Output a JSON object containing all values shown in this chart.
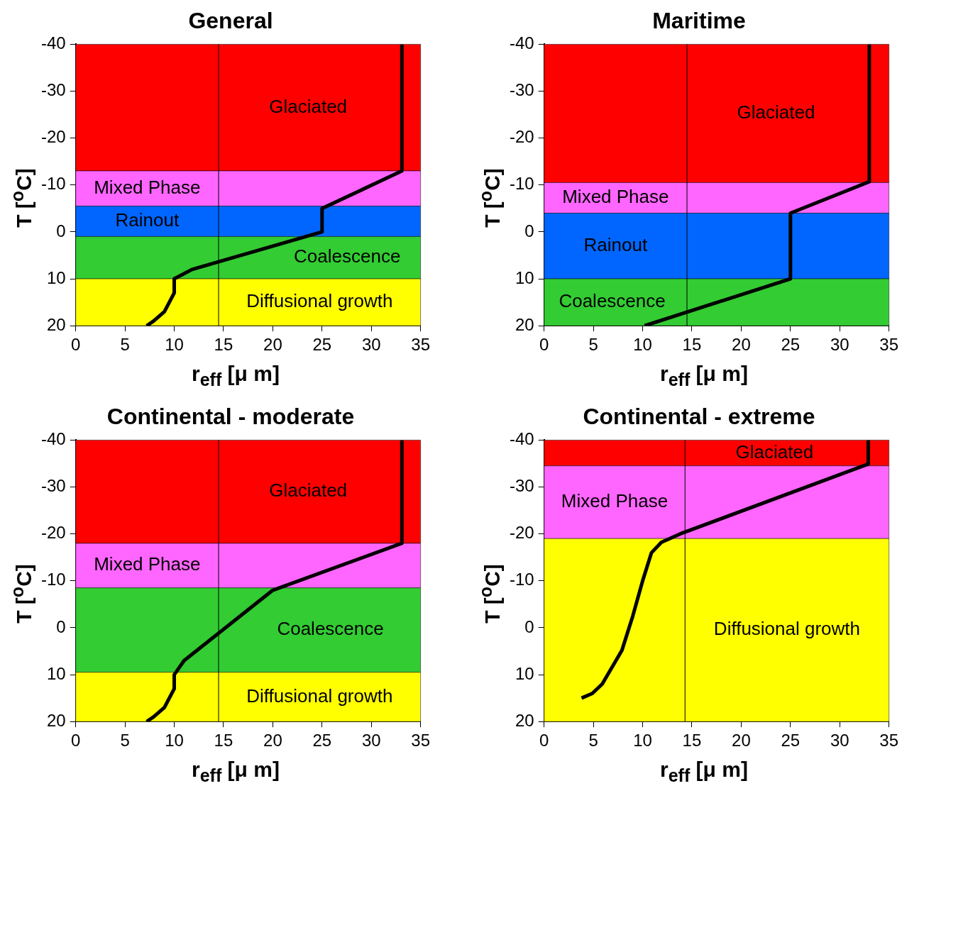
{
  "chart_data": [
    {
      "type": "line",
      "title": "General",
      "xlabel": "r$_{eff}$ [μ m]",
      "ylabel": "T [$^{o}$C]",
      "xlim": [
        0,
        35
      ],
      "xticks": [
        0,
        5,
        10,
        15,
        20,
        25,
        30,
        35
      ],
      "ylim": [
        20,
        -40
      ],
      "yticks": [
        -40,
        -30,
        -20,
        -10,
        0,
        10,
        20
      ],
      "grid": false,
      "legend": false,
      "marker": "none",
      "bands": [
        {
          "axis": "y",
          "from": -40,
          "to": -13,
          "label": "Glaciated",
          "color": "#ff0000"
        },
        {
          "axis": "y",
          "from": -13,
          "to": -5.5,
          "label": "Mixed Phase",
          "color": "#ff66ff"
        },
        {
          "axis": "y",
          "from": -5.5,
          "to": 1,
          "label": "Rainout",
          "color": "#0066ff"
        },
        {
          "axis": "y",
          "from": 1,
          "to": 10,
          "label": "Coalescence",
          "color": "#33cc33"
        },
        {
          "axis": "y",
          "from": 10,
          "to": 20,
          "label": "Diffusional growth",
          "color": "#ffff00"
        }
      ],
      "ref_lines": [
        {
          "axis": "x",
          "value": 14.5,
          "color": "#000000"
        }
      ],
      "series": [
        {
          "type": "line",
          "color": "#000000",
          "x": [
            7.2,
            7.9,
            9,
            10,
            10,
            11.8,
            25,
            25,
            33.1,
            33.1
          ],
          "values": [
            20,
            19,
            17,
            13,
            10,
            8,
            0,
            -5,
            -13,
            -40
          ]
        }
      ]
    },
    {
      "type": "line",
      "title": "Maritime",
      "xlabel": "r$_{eff}$ [μ m]",
      "ylabel": "T [$^{o}$C]",
      "xlim": [
        0,
        35
      ],
      "xticks": [
        0,
        5,
        10,
        15,
        20,
        25,
        30,
        35
      ],
      "ylim": [
        20,
        -40
      ],
      "yticks": [
        -40,
        -30,
        -20,
        -10,
        0,
        10,
        20
      ],
      "grid": false,
      "legend": false,
      "marker": "none",
      "bands": [
        {
          "axis": "y",
          "from": -40,
          "to": -10.5,
          "label": "Glaciated",
          "color": "#ff0000"
        },
        {
          "axis": "y",
          "from": -10.5,
          "to": -4,
          "label": "Mixed Phase",
          "color": "#ff66ff"
        },
        {
          "axis": "y",
          "from": -4,
          "to": 10,
          "label": "Rainout",
          "color": "#0066ff"
        },
        {
          "axis": "y",
          "from": 10,
          "to": 20,
          "label": "Coalescence",
          "color": "#33cc33"
        }
      ],
      "ref_lines": [
        {
          "axis": "x",
          "value": 14.5,
          "color": "#000000"
        }
      ],
      "series": [
        {
          "type": "line",
          "color": "#000000",
          "x": [
            10.2,
            25,
            25,
            33,
            33
          ],
          "values": [
            20,
            10,
            -4,
            -10.7,
            -40
          ]
        }
      ]
    },
    {
      "type": "line",
      "title": "Continental - moderate",
      "xlabel": "r$_{eff}$ [μ m]",
      "ylabel": "T [$^{o}$C]",
      "xlim": [
        0,
        35
      ],
      "xticks": [
        0,
        5,
        10,
        15,
        20,
        25,
        30,
        35
      ],
      "ylim": [
        20,
        -40
      ],
      "yticks": [
        -40,
        -30,
        -20,
        -10,
        0,
        10,
        20
      ],
      "grid": false,
      "legend": false,
      "marker": "none",
      "bands": [
        {
          "axis": "y",
          "from": -40,
          "to": -18,
          "label": "Glaciated",
          "color": "#ff0000"
        },
        {
          "axis": "y",
          "from": -18,
          "to": -8.5,
          "label": "Mixed Phase",
          "color": "#ff66ff"
        },
        {
          "axis": "y",
          "from": -8.5,
          "to": 9.5,
          "label": "Coalescence",
          "color": "#33cc33"
        },
        {
          "axis": "y",
          "from": 9.5,
          "to": 20,
          "label": "Diffusional growth",
          "color": "#ffff00"
        }
      ],
      "ref_lines": [
        {
          "axis": "x",
          "value": 14.5,
          "color": "#000000"
        }
      ],
      "series": [
        {
          "type": "line",
          "color": "#000000",
          "x": [
            7.2,
            7.9,
            9,
            10,
            10,
            11,
            20,
            33.1,
            33.1
          ],
          "values": [
            20,
            19,
            17,
            13,
            10,
            7,
            -8,
            -18,
            -40
          ]
        }
      ]
    },
    {
      "type": "line",
      "title": "Continental - extreme",
      "xlabel": "r$_{eff}$ [μ m]",
      "ylabel": "T [$^{o}$C]",
      "xlim": [
        0,
        35
      ],
      "xticks": [
        0,
        5,
        10,
        15,
        20,
        25,
        30,
        35
      ],
      "ylim": [
        20,
        -40
      ],
      "yticks": [
        -40,
        -30,
        -20,
        -10,
        0,
        10,
        20
      ],
      "grid": false,
      "legend": false,
      "marker": "none",
      "bands": [
        {
          "axis": "y",
          "from": -40,
          "to": -34.5,
          "label": "Glaciated",
          "color": "#ff0000"
        },
        {
          "axis": "y",
          "from": -34.5,
          "to": -19,
          "label": "Mixed Phase",
          "color": "#ff66ff"
        },
        {
          "axis": "y",
          "from": -19,
          "to": 20,
          "label": "Diffusional growth",
          "color": "#ffff00"
        }
      ],
      "ref_lines": [
        {
          "axis": "x",
          "value": 14.3,
          "color": "#000000"
        }
      ],
      "series": [
        {
          "type": "line",
          "color": "#000000",
          "x": [
            3.8,
            4.9,
            5.9,
            7.9,
            9,
            10,
            10.9,
            11.9,
            13.8,
            32.9,
            32.9
          ],
          "values": [
            15,
            14,
            12,
            4.8,
            -2.5,
            -10,
            -16,
            -18.2,
            -20,
            -34.9,
            -40
          ]
        }
      ]
    }
  ]
}
